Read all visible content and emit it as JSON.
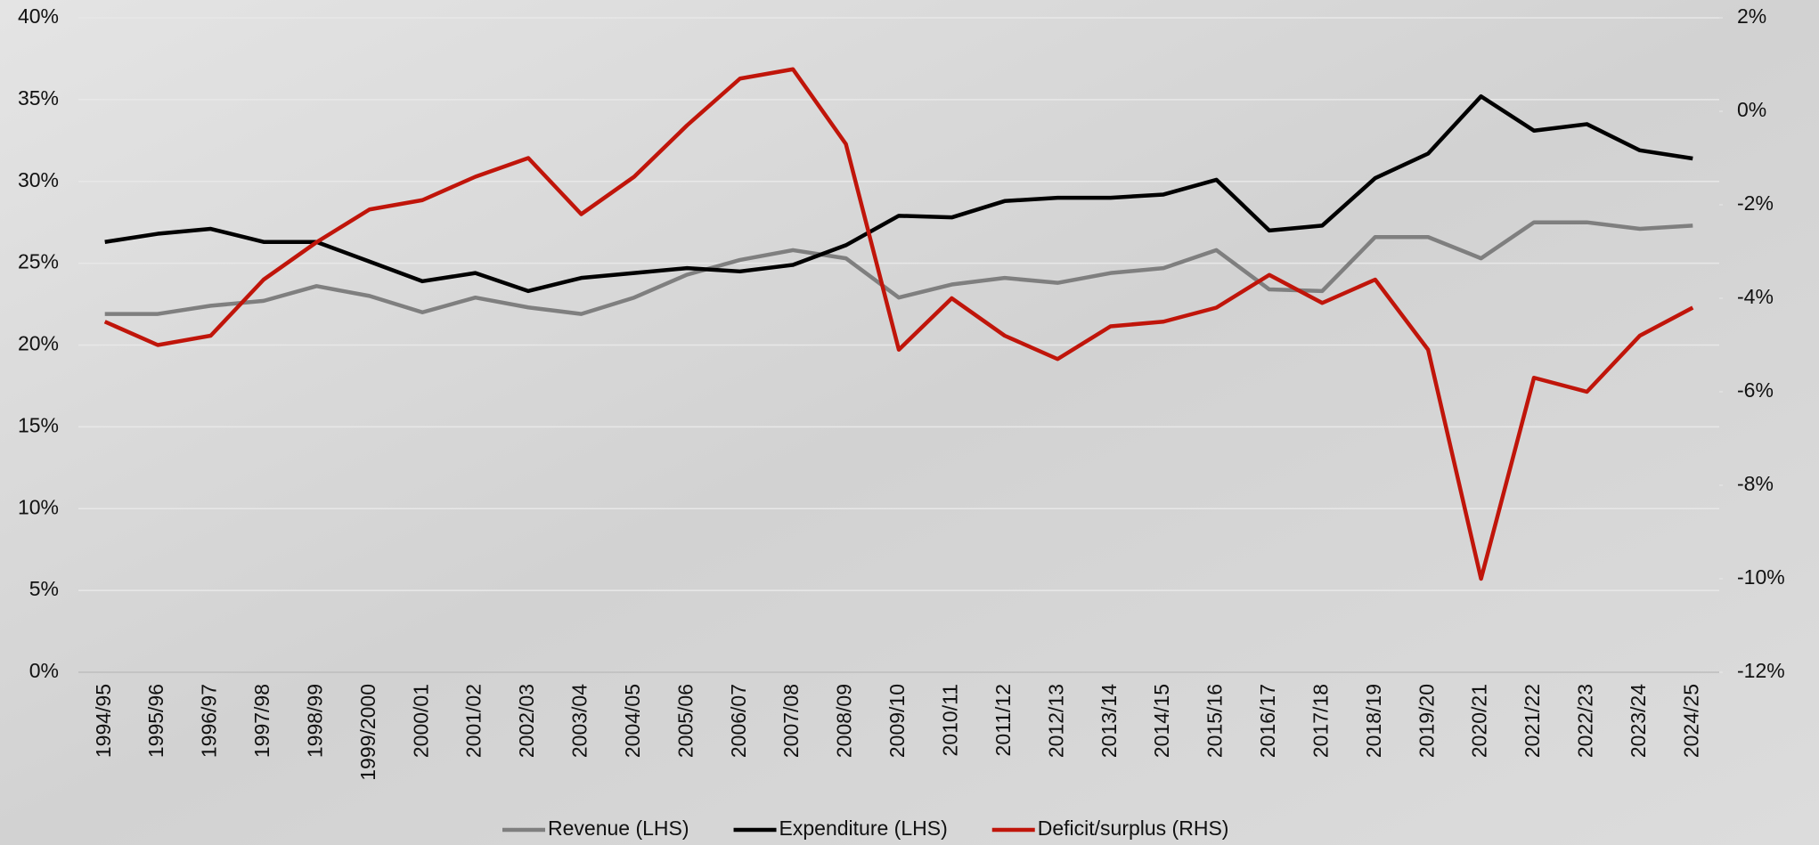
{
  "chart_data": {
    "type": "line",
    "categories": [
      "1994/95",
      "1995/96",
      "1996/97",
      "1997/98",
      "1998/99",
      "1999/2000",
      "2000/01",
      "2001/02",
      "2002/03",
      "2003/04",
      "2004/05",
      "2005/06",
      "2006/07",
      "2007/08",
      "2008/09",
      "2009/10",
      "2010/11",
      "2011/12",
      "2012/13",
      "2013/14",
      "2014/15",
      "2015/16",
      "2016/17",
      "2017/18",
      "2018/19",
      "2019/20",
      "2020/21",
      "2021/22",
      "2022/23",
      "2023/24",
      "2024/25"
    ],
    "series": [
      {
        "name": "Revenue (LHS)",
        "color": "#7f7f7f",
        "values": [
          21.9,
          21.9,
          22.4,
          22.7,
          23.6,
          23.0,
          22.0,
          22.9,
          22.3,
          21.9,
          22.9,
          24.3,
          25.2,
          25.8,
          25.3,
          22.9,
          23.7,
          24.1,
          23.8,
          24.4,
          24.7,
          25.8,
          23.4,
          23.3,
          26.6,
          26.6,
          25.3,
          27.5,
          27.5,
          27.1,
          27.3
        ]
      },
      {
        "name": "Expenditure (LHS)",
        "color": "#000000",
        "values": [
          26.3,
          26.8,
          27.1,
          26.3,
          26.3,
          25.1,
          23.9,
          24.4,
          23.3,
          24.1,
          24.4,
          24.7,
          24.5,
          24.9,
          26.1,
          27.9,
          27.8,
          28.8,
          29.0,
          29.0,
          29.2,
          30.1,
          27.0,
          27.3,
          30.2,
          31.7,
          35.2,
          33.1,
          33.5,
          31.9,
          31.4
        ]
      },
      {
        "name": "Deficit/surplus (RHS)",
        "color": "#c0150a",
        "axis": "y2",
        "values": [
          -4.5,
          -5.0,
          -4.8,
          -3.6,
          -2.8,
          -2.1,
          -1.9,
          -1.4,
          -1.0,
          -2.2,
          -1.4,
          -0.3,
          0.7,
          0.9,
          -0.7,
          -5.1,
          -4.0,
          -4.8,
          -5.3,
          -4.6,
          -4.5,
          -4.2,
          -3.5,
          -4.1,
          -3.6,
          -5.1,
          -10.0,
          -5.7,
          -6.0,
          -4.8,
          -4.2
        ]
      }
    ],
    "ylim": [
      0,
      40
    ],
    "yticks": [
      {
        "value": 0,
        "label": "0%"
      },
      {
        "value": 5,
        "label": "5%"
      },
      {
        "value": 10,
        "label": "10%"
      },
      {
        "value": 15,
        "label": "15%"
      },
      {
        "value": 20,
        "label": "20%"
      },
      {
        "value": 25,
        "label": "25%"
      },
      {
        "value": 30,
        "label": "30%"
      },
      {
        "value": 35,
        "label": "35%"
      },
      {
        "value": 40,
        "label": "40%"
      }
    ],
    "y2lim": [
      -12,
      2
    ],
    "y2ticks": [
      {
        "value": -12,
        "label": "-12%"
      },
      {
        "value": -10,
        "label": "-10%"
      },
      {
        "value": -8,
        "label": "-8%"
      },
      {
        "value": -6,
        "label": "-6%"
      },
      {
        "value": -4,
        "label": "-4%"
      },
      {
        "value": -2,
        "label": "-2%"
      },
      {
        "value": 0,
        "label": "0%"
      },
      {
        "value": 2,
        "label": "2%"
      }
    ],
    "grid": true,
    "legend": "bottom"
  }
}
